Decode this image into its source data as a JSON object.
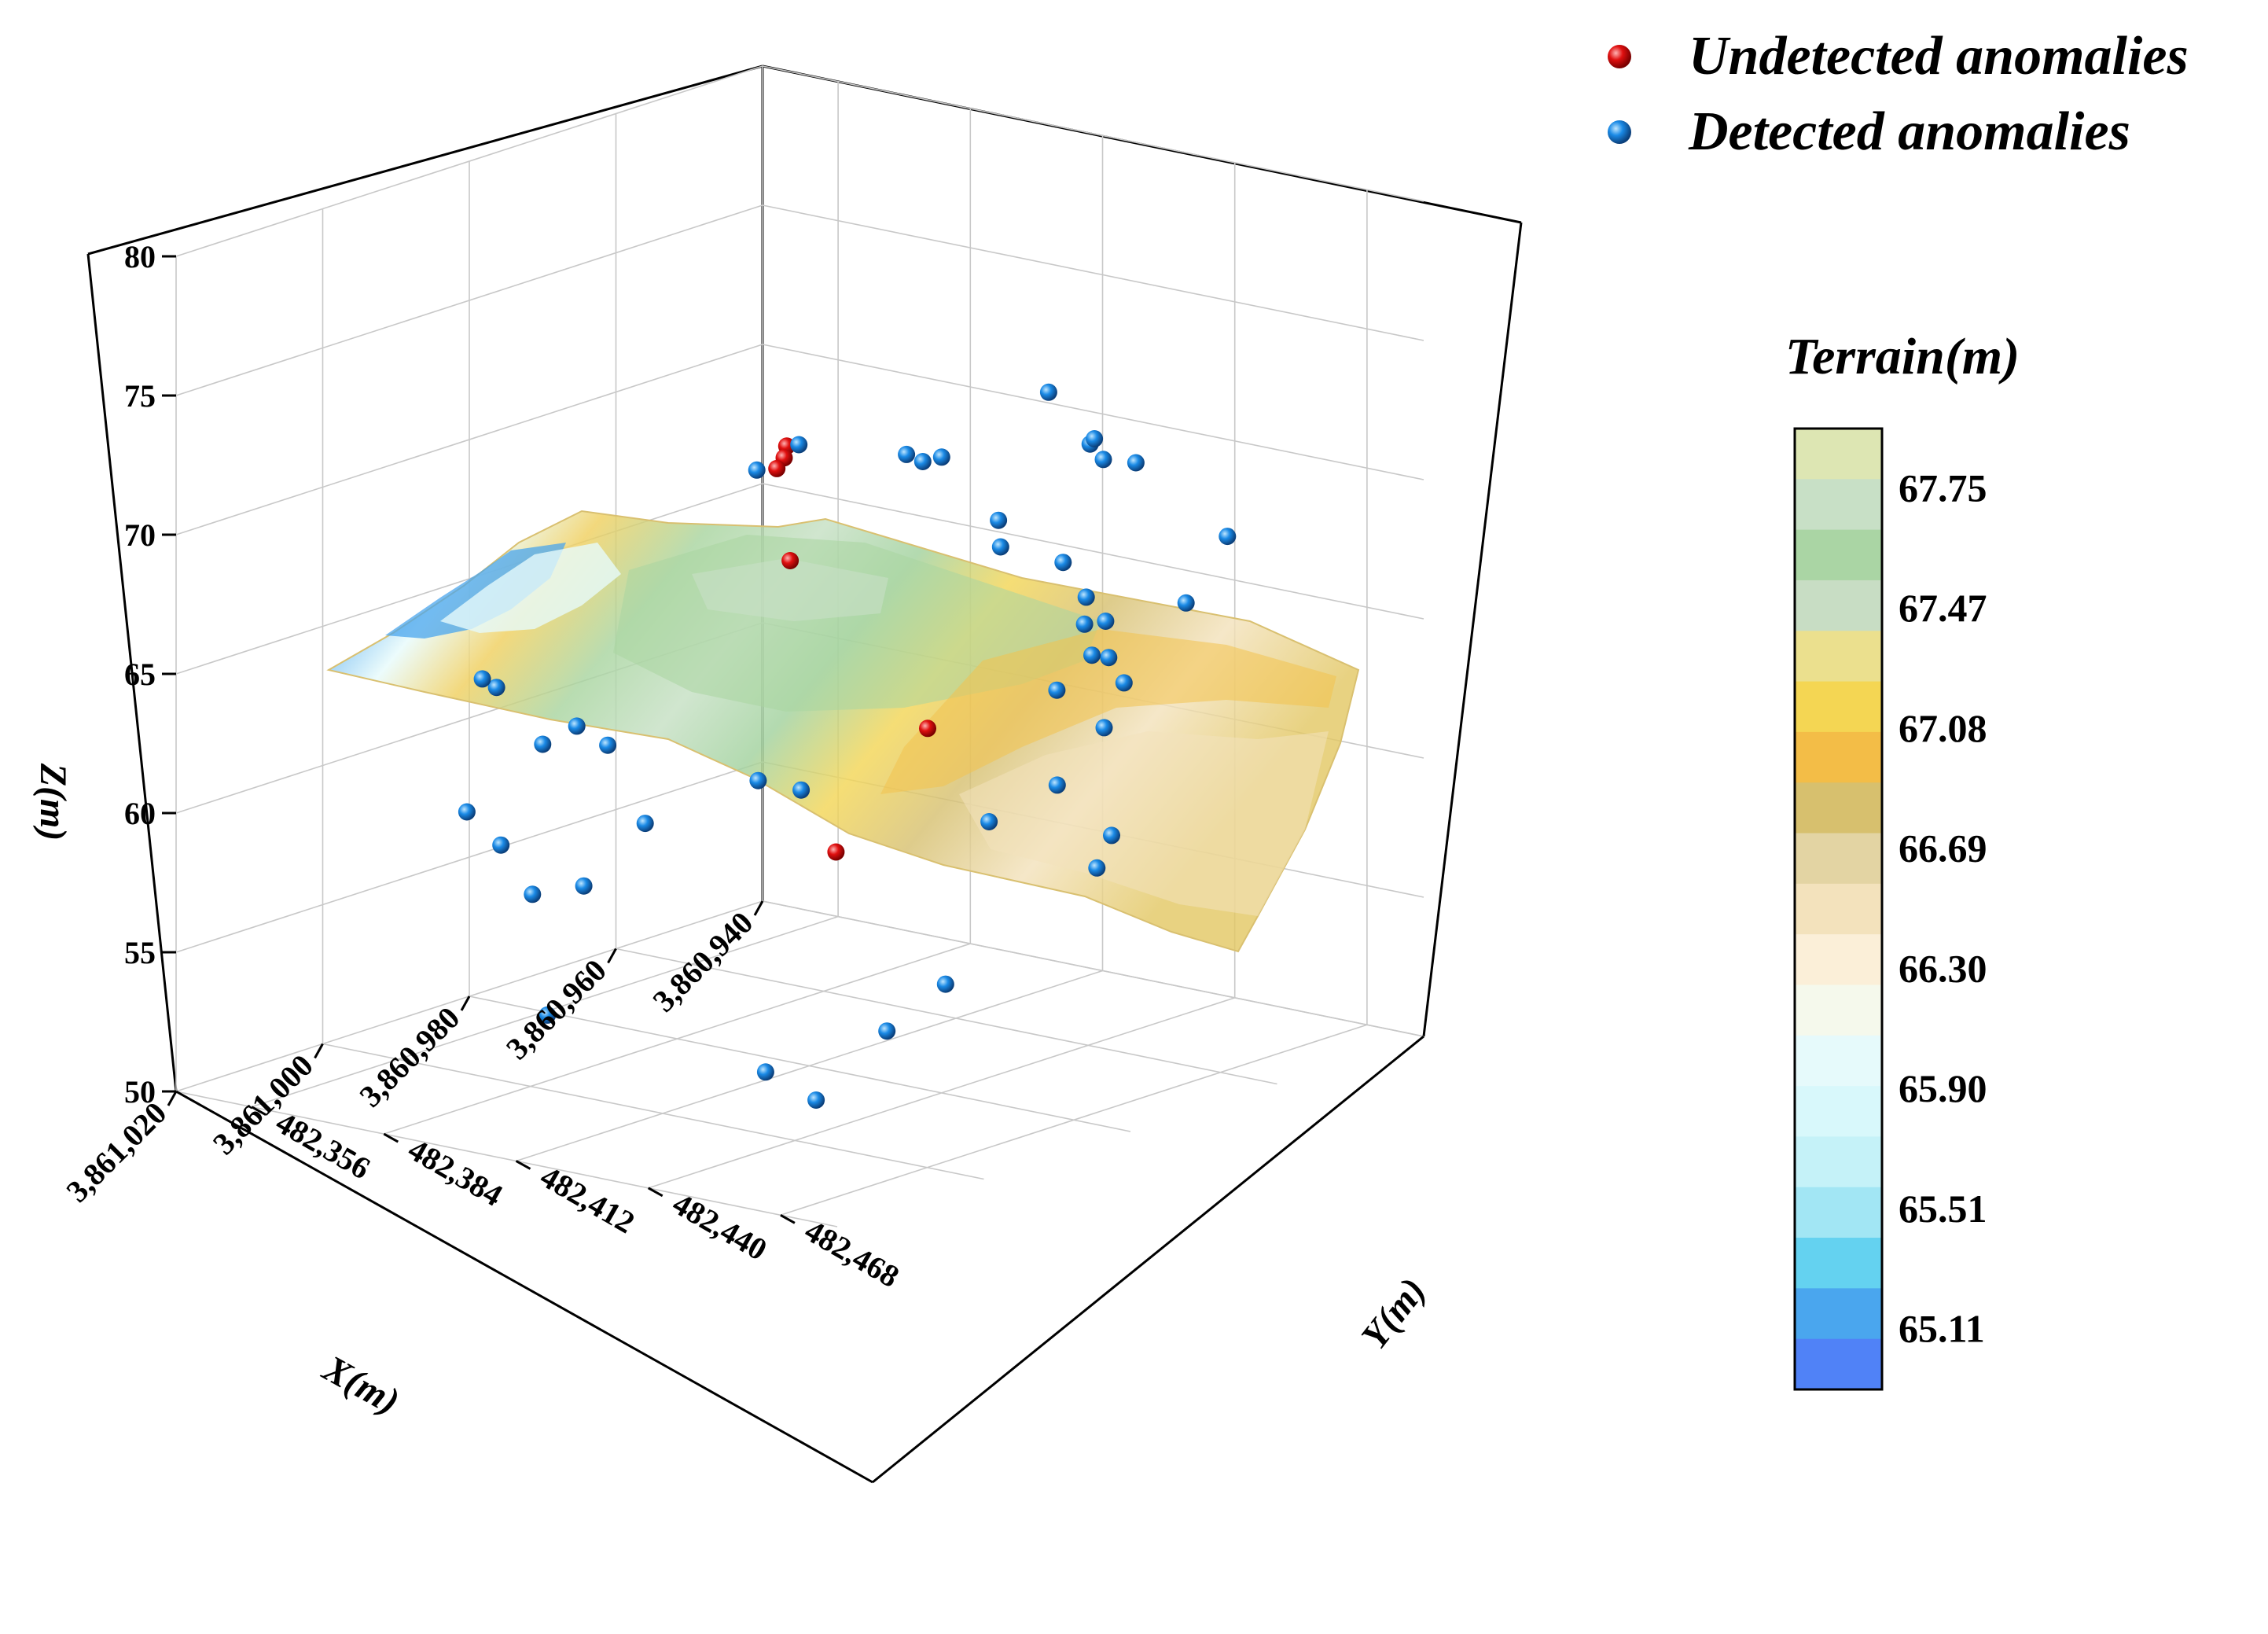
{
  "chart_data": {
    "type": "scatter",
    "title": "",
    "xlabel": "X(m)",
    "ylabel": "Y(m)",
    "zlabel": "Z(m)",
    "x_ticks": [
      "3,860,940",
      "3,860,960",
      "3,860,980",
      "3,861,000",
      "3,861,020"
    ],
    "y_ticks": [
      "482,356",
      "482,384",
      "482,412",
      "482,440",
      "482,468"
    ],
    "z_ticks": [
      "50",
      "55",
      "60",
      "65",
      "70",
      "75",
      "80"
    ],
    "xlim": [
      3860940,
      3861020
    ],
    "ylim": [
      482340,
      482480
    ],
    "zlim": [
      50,
      80
    ],
    "grid": true,
    "legend_position": "top-right",
    "legend": [
      {
        "name": "Undetected anomalies",
        "color": "#e01010"
      },
      {
        "name": "Detected anomalies",
        "color": "#1a8ae6"
      }
    ],
    "series": [
      {
        "name": "Undetected anomalies",
        "color": "#e01010",
        "points": [
          [
            3860947,
            482356,
            67.5
          ],
          [
            3860948,
            482357,
            67.2
          ],
          [
            3860949,
            482357,
            66.9
          ],
          [
            3860962,
            482380,
            65.5
          ],
          [
            3860998,
            482465,
            65.5
          ],
          [
            3861006,
            482458,
            61.5
          ]
        ]
      },
      {
        "name": "Detected anomalies",
        "color": "#1a8ae6",
        "points": [
          [
            3860944,
            482345,
            66.0
          ],
          [
            3860946,
            482357,
            67.5
          ],
          [
            3860950,
            482386,
            68.5
          ],
          [
            3860951,
            482391,
            68.5
          ],
          [
            3860951,
            482395,
            68.8
          ],
          [
            3860948,
            482413,
            71.5
          ],
          [
            3860952,
            482428,
            70.5
          ],
          [
            3860954,
            482432,
            71.0
          ],
          [
            3860956,
            482437,
            70.6
          ],
          [
            3860958,
            482447,
            71.0
          ],
          [
            3860960,
            482421,
            68.2
          ],
          [
            3860961,
            482423,
            67.4
          ],
          [
            3860965,
            482447,
            65.8
          ],
          [
            3860966,
            482453,
            66.2
          ],
          [
            3860968,
            482460,
            64.4
          ],
          [
            3860963,
            482449,
            64.5
          ],
          [
            3860964,
            482447,
            64.6
          ],
          [
            3860966,
            482444,
            68.0
          ],
          [
            3860968,
            482452,
            67.2
          ],
          [
            3860972,
            482452,
            64.2
          ],
          [
            3860972,
            482462,
            63.2
          ],
          [
            3860980,
            482476,
            60.5
          ],
          [
            3860982,
            482476,
            59.5
          ],
          [
            3860975,
            482338,
            60.6
          ],
          [
            3860975,
            482335,
            60.8
          ],
          [
            3860970,
            482340,
            58.2
          ],
          [
            3860975,
            482355,
            59.8
          ],
          [
            3860974,
            482360,
            59.2
          ],
          [
            3860990,
            482355,
            58.0
          ],
          [
            3860986,
            482356,
            56.5
          ],
          [
            3860992,
            482372,
            55.8
          ],
          [
            3860985,
            482372,
            55.5
          ],
          [
            3860985,
            482385,
            58.2
          ],
          [
            3861008,
            482400,
            53.8
          ],
          [
            3861004,
            482440,
            52.8
          ],
          [
            3861010,
            482460,
            53.0
          ],
          [
            3861002,
            482475,
            57.0
          ],
          [
            3861010,
            482475,
            56.0
          ],
          [
            3860990,
            482480,
            63.3
          ],
          [
            3860998,
            482478,
            62.6
          ],
          [
            3860975,
            482484,
            68.7
          ],
          [
            3860970,
            482485,
            70.7
          ],
          [
            3860996,
            482426,
            62.1
          ],
          [
            3860994,
            482432,
            61.8
          ]
        ]
      }
    ],
    "colorbar": {
      "title": "Terrain(m)",
      "labels": [
        "67.75",
        "67.47",
        "67.08",
        "66.69",
        "66.30",
        "65.90",
        "65.51",
        "65.11"
      ],
      "colors": [
        "#dde6b3",
        "#c8e0c6",
        "#aad5a4",
        "#c8ddc4",
        "#ebe08e",
        "#f4d653",
        "#f3bd47",
        "#d7c06e",
        "#e3d4a3",
        "#f3e2bc",
        "#fbefd8",
        "#f5f9ec",
        "#e6fafb",
        "#d8f8fb",
        "#c5f2f8",
        "#a2e6f4",
        "#64d2f0",
        "#4aa6ee",
        "#5082f7"
      ]
    }
  }
}
